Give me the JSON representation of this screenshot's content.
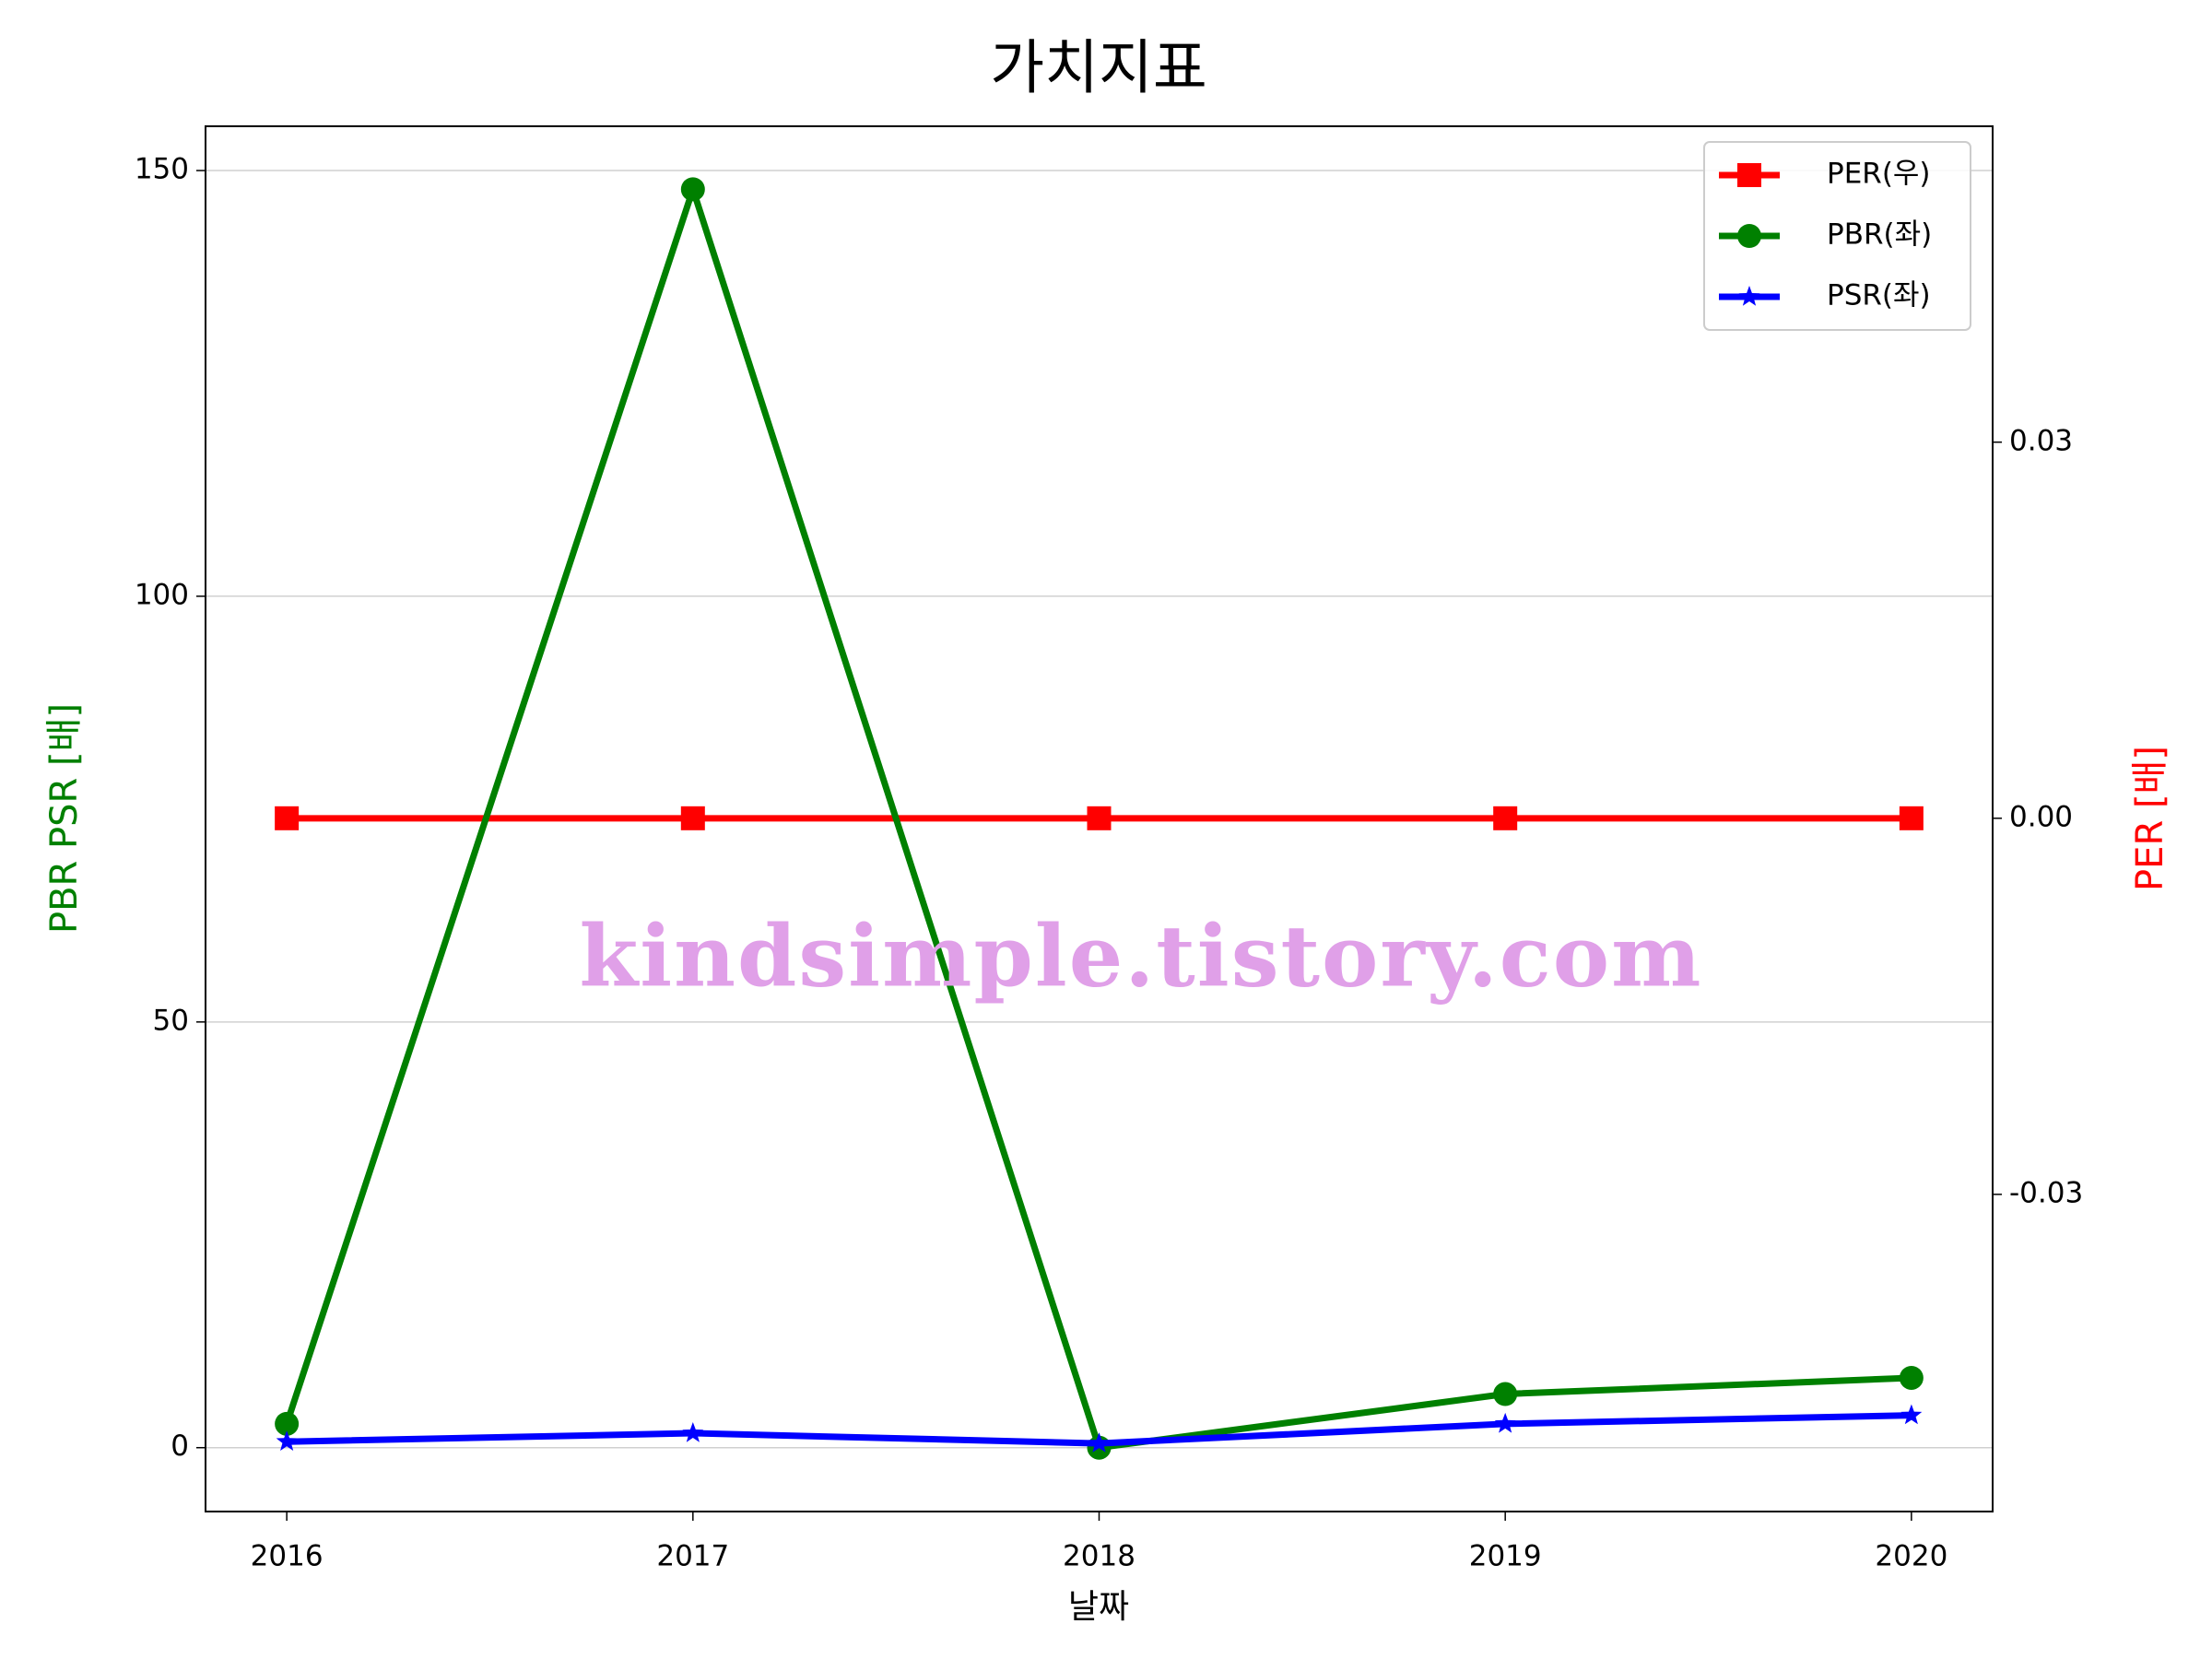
{
  "chart_data": {
    "type": "line",
    "title": "가치지표",
    "x_label": "날짜",
    "y_label": "PBR PSR [배]",
    "y2_label": "PER [배]",
    "y_label_color": "#008000",
    "y2_label_color": "#ff0000",
    "x": [
      2016,
      2017,
      2018,
      2019,
      2020
    ],
    "xlim": [
      2015.8,
      2020.2
    ],
    "xticks": [
      2016,
      2017,
      2018,
      2019,
      2020
    ],
    "ylim": [
      -7.5,
      155.2
    ],
    "yticks": [
      0,
      50,
      100,
      150
    ],
    "y2lim": [
      -0.0553,
      0.0552
    ],
    "y2ticks": [
      {
        "value": -0.03,
        "label": "-0.03"
      },
      {
        "value": 0,
        "label": "0.00"
      },
      {
        "value": 0.03,
        "label": "0.03"
      }
    ],
    "grid": true,
    "legend": "upper right",
    "watermark": "kindsimple.tistory.com",
    "series": [
      {
        "name": "PER(우)",
        "color": "#ff0000",
        "marker": "square",
        "axis": "y2",
        "values": [
          0,
          0,
          0,
          0,
          0
        ]
      },
      {
        "name": "PBR(좌)",
        "color": "#008000",
        "marker": "circle",
        "values": [
          2.8,
          147.8,
          0,
          6.3,
          8.2
        ]
      },
      {
        "name": "PSR(좌)",
        "color": "#0000ff",
        "marker": "star",
        "values": [
          0.7,
          1.7,
          0.5,
          2.8,
          3.8
        ]
      }
    ]
  }
}
